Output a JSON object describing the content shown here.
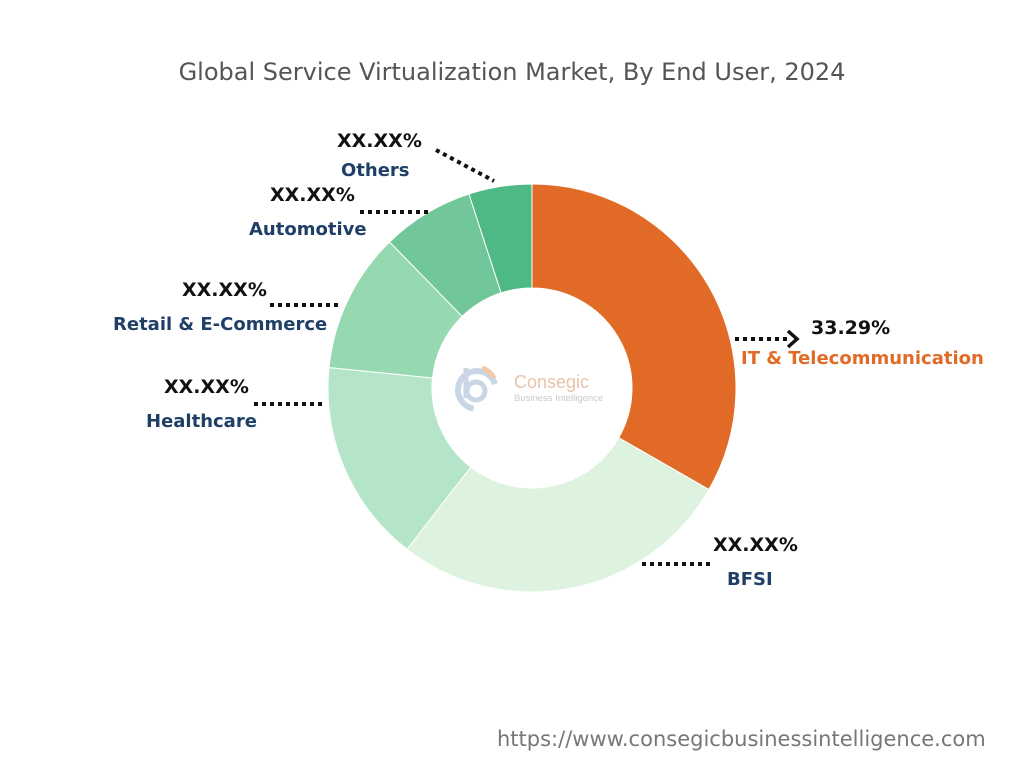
{
  "chart_data": {
    "type": "pie",
    "subtype": "donut",
    "title": "Global Service Virtualization Market, By End User, 2024",
    "categories": [
      "IT & Telecommunication",
      "BFSI",
      "Healthcare",
      "Retail & E-Commerce",
      "Automotive",
      "Others"
    ],
    "values": [
      33.29,
      27.2,
      16.1,
      11.1,
      7.3,
      5.0
    ],
    "data_labels": [
      "33.29%",
      "XX.XX%",
      "XX.XX%",
      "XX.XX%",
      "XX.XX%",
      "XX.XX%"
    ],
    "colors": [
      "#e26a27",
      "#ddf2df",
      "#b5e5c8",
      "#96d8b0",
      "#72c79a",
      "#4fb985"
    ],
    "legend": "none"
  },
  "logo": {
    "name": "Consegic",
    "tagline": "Business Intelligence"
  },
  "footer_url": "https://www.consegicbusinessintelligence.com"
}
